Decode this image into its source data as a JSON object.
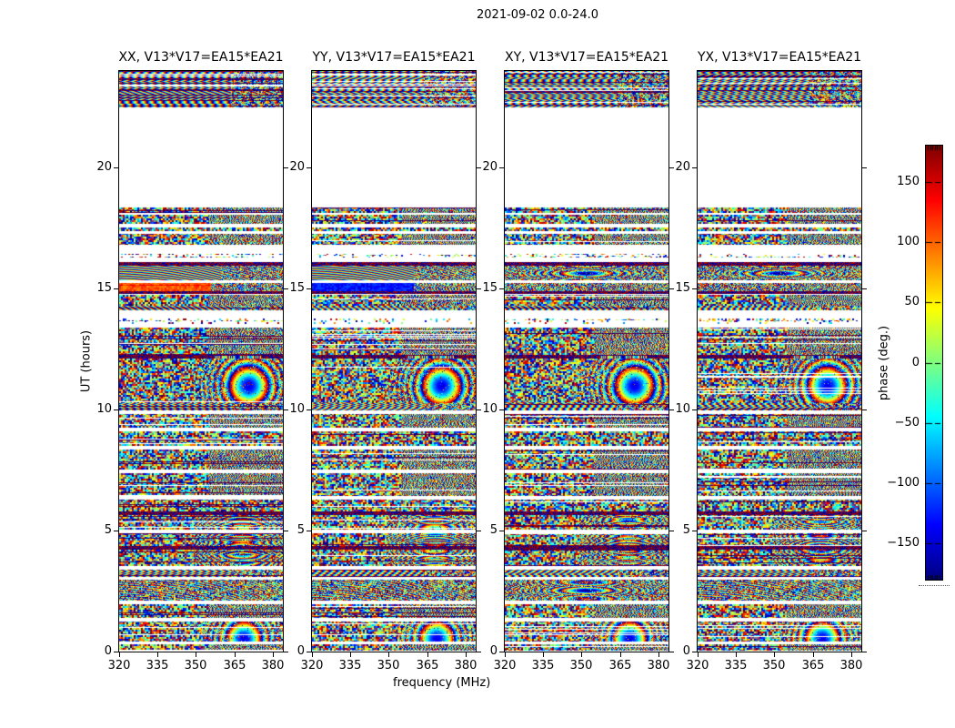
{
  "figure": {
    "title": "2021-09-02 0.0-24.0"
  },
  "chart_data": {
    "type": "heatmap",
    "title": "2021-09-02 0.0-24.0",
    "xlabel": "frequency (MHz)",
    "ylabel": "UT (hours)",
    "colorbar_label": "phase (deg.)",
    "colormap": "jet",
    "x_range_mhz": [
      320,
      384
    ],
    "x_ticks": [
      320,
      335,
      350,
      365,
      380
    ],
    "x_tick_labels": [
      "320",
      "335",
      "350",
      "365",
      "380"
    ],
    "y_range_hours": [
      0,
      24
    ],
    "y_ticks": [
      0,
      5,
      10,
      15,
      20
    ],
    "y_tick_labels": [
      "0",
      "5",
      "10",
      "15",
      "20"
    ],
    "colorbar_range_deg": [
      -180,
      180
    ],
    "colorbar_ticks": [
      150,
      100,
      50,
      0,
      -50,
      -100,
      -150
    ],
    "colorbar_tick_labels": [
      "150",
      "100",
      "50",
      "0",
      "−50",
      "−100",
      "−150"
    ],
    "panels": [
      {
        "pol": "XX",
        "title": "XX, V13*V17=EA15*EA21"
      },
      {
        "pol": "YY",
        "title": "YY, V13*V17=EA15*EA21"
      },
      {
        "pol": "XY",
        "title": "XY, V13*V17=EA15*EA21"
      },
      {
        "pol": "YX",
        "title": "YX, V13*V17=EA15*EA21"
      }
    ],
    "bands": [
      {
        "u": [
          22.5,
          24.0
        ],
        "t": "vstripes",
        "p": 9
      },
      {
        "u": [
          18.35,
          22.5
        ],
        "t": "blank"
      },
      {
        "u": [
          18.15,
          18.35
        ],
        "t": "noise",
        "sr": 1
      },
      {
        "u": [
          17.68,
          18.06
        ],
        "t": "noise",
        "sr": 1
      },
      {
        "u": [
          17.38,
          17.53
        ],
        "t": "noise"
      },
      {
        "u": [
          16.8,
          17.27
        ],
        "t": "noise",
        "sr": 1
      },
      {
        "u": [
          16.29,
          16.44
        ],
        "t": "sparse"
      },
      {
        "u": [
          15.95,
          16.1
        ],
        "t": "dark"
      },
      {
        "u": [
          15.35,
          15.95
        ],
        "t": "fringe",
        "variants": [
          "diag",
          "diag",
          "wavy",
          "wavy"
        ]
      },
      {
        "u": [
          14.9,
          15.24
        ],
        "t": "solid",
        "variants": [
          "warm",
          "cool",
          "fine",
          "fine"
        ]
      },
      {
        "u": [
          14.78,
          14.9
        ],
        "t": "dark"
      },
      {
        "u": [
          14.3,
          14.74
        ],
        "t": "noise",
        "sr": 1
      },
      {
        "u": [
          14.11,
          14.3
        ],
        "t": "vstripes",
        "p": 7
      },
      {
        "u": [
          13.54,
          13.77
        ],
        "t": "sparse"
      },
      {
        "u": [
          12.95,
          13.4
        ],
        "t": "noise",
        "sr": 1
      },
      {
        "u": [
          12.25,
          12.95
        ],
        "t": "noise",
        "sr": 1
      },
      {
        "u": [
          12.1,
          12.25
        ],
        "t": "knot"
      },
      {
        "u": [
          10.27,
          12.1
        ],
        "t": "bullseye",
        "cx": 0.79,
        "cy": 11.0,
        "k": 0.004,
        "rad": 55
      },
      {
        "u": [
          9.97,
          10.27
        ],
        "t": "vstripes",
        "p": 8
      },
      {
        "u": [
          9.25,
          9.82
        ],
        "t": "noise",
        "sr": 1
      },
      {
        "u": [
          8.5,
          9.1
        ],
        "t": "noise"
      },
      {
        "u": [
          7.52,
          8.35
        ],
        "t": "noise",
        "sr": 1
      },
      {
        "u": [
          6.43,
          7.37
        ],
        "t": "noise",
        "sr": 1
      },
      {
        "u": [
          5.79,
          6.28
        ],
        "t": "noise"
      },
      {
        "u": [
          5.64,
          5.79
        ],
        "t": "dark"
      },
      {
        "u": [
          5.04,
          5.64
        ],
        "t": "noise",
        "wave": 1
      },
      {
        "u": [
          4.36,
          4.89
        ],
        "t": "noise",
        "wave": 1
      },
      {
        "u": [
          4.21,
          4.36
        ],
        "t": "dark"
      },
      {
        "u": [
          3.54,
          4.21
        ],
        "t": "noise",
        "wave": 1
      },
      {
        "u": [
          3.08,
          3.39
        ],
        "t": "vstripes",
        "p": 8
      },
      {
        "u": [
          2.11,
          2.97
        ],
        "t": "fringe",
        "soft": 1,
        "variants": [
          "diag",
          "diag",
          "wavy",
          "diag"
        ]
      },
      {
        "u": [
          1.39,
          1.96
        ],
        "t": "noise",
        "sr": 1
      },
      {
        "u": [
          0.41,
          1.24
        ],
        "t": "bullseye",
        "cx": 0.76,
        "cy": 0.55,
        "k": 0.005,
        "rad": 45
      },
      {
        "u": [
          0.04,
          0.3
        ],
        "t": "noise",
        "sr": 1
      }
    ]
  }
}
